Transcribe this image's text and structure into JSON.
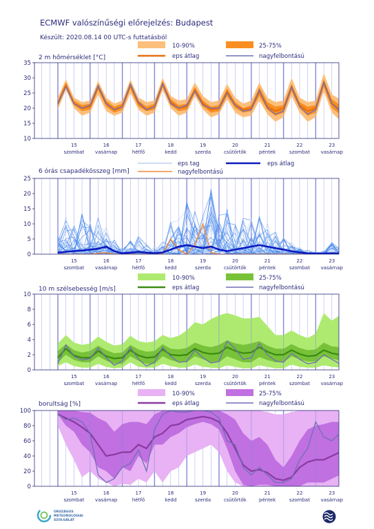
{
  "header": {
    "title": "ECMWF valószínűségi előrejelzés: Budapest",
    "subtitle": "Készült: 2020.08.14 00 UTC-s futtatásból"
  },
  "colors": {
    "axis": "#2b2b7a",
    "grid_v": "#b0b0ee",
    "grid_day": "#8888dd",
    "temp_outer": "#fcbf7c",
    "temp_inner": "#f98f22",
    "temp_mean": "#e86e10",
    "hires": "#6f6fb5",
    "precip_member": "#4488ee",
    "precip_member_light": "#bcd0f0",
    "precip_mean": "#0a1ac0",
    "precip_hires": "#f08a3a",
    "wind_outer": "#aeea70",
    "wind_inner": "#78c23a",
    "wind_mean": "#3a8a12",
    "cloud_outer": "#e8b2f4",
    "cloud_inner": "#c070e0",
    "cloud_mean": "#8a3aa0"
  },
  "icons": {
    "logo_left": "omsz-logo",
    "logo_right": "ecmwf-logo"
  },
  "footer": {
    "logo_text_lines": [
      "ORSZÁGOS",
      "METEOROLÓGIAI",
      "SZOLGÁLAT"
    ]
  },
  "chart_data": [
    {
      "type": "area",
      "title": "2 m hőmérséklet [°C]",
      "legend": {
        "outer": "10-90%",
        "inner": "25-75%",
        "mean": "eps átlag",
        "hires": "nagyfelbontású"
      },
      "ylim": [
        10,
        35
      ],
      "yticks": [
        10,
        15,
        20,
        25,
        30,
        35
      ],
      "x_days": [
        "15",
        "16",
        "17",
        "18",
        "19",
        "20",
        "21",
        "22",
        "23"
      ],
      "x_daynames": [
        "szombat",
        "vasárnap",
        "hétfő",
        "kedd",
        "szerda",
        "csütörtök",
        "péntek",
        "szombat",
        "vasárnap"
      ],
      "x": [
        0,
        0.25,
        0.5,
        0.75,
        1,
        1.25,
        1.5,
        1.75,
        2,
        2.25,
        2.5,
        2.75,
        3,
        3.25,
        3.5,
        3.75,
        4,
        4.25,
        4.5,
        4.75,
        5,
        5.25,
        5.5,
        5.75,
        6,
        6.25,
        6.5,
        6.75,
        7,
        7.25,
        7.5,
        7.75,
        8,
        8.25,
        8.5,
        8.75,
        9.25
      ],
      "p10": [
        19.5,
        26,
        20,
        17.5,
        18.5,
        24.5,
        19,
        17.5,
        18.5,
        25,
        19.5,
        17.5,
        18.5,
        26,
        20,
        17.5,
        18.5,
        24,
        19.5,
        17,
        18,
        23,
        18.5,
        17,
        17.5,
        22.5,
        18,
        15.5,
        17,
        24,
        18.5,
        15.5,
        17,
        25.5,
        18.5,
        16,
        17
      ],
      "p25": [
        20.5,
        27,
        21,
        19,
        19.5,
        26,
        20.5,
        18.5,
        19.5,
        26.5,
        20.5,
        19,
        19.5,
        27,
        21,
        19,
        19.5,
        25,
        20.5,
        18.5,
        19,
        24,
        20,
        18.5,
        19,
        24,
        19.5,
        17.5,
        18.5,
        25.5,
        20,
        17.5,
        18.5,
        27,
        20,
        18,
        19
      ],
      "p75": [
        22.5,
        28.5,
        22.5,
        21,
        21.5,
        28,
        22.5,
        20.5,
        21.5,
        28.5,
        22.5,
        20.5,
        21.5,
        29,
        23,
        21,
        21.5,
        27,
        22.5,
        20.5,
        21,
        26.5,
        22,
        20,
        21,
        27,
        22,
        20.5,
        21,
        28,
        22,
        20.5,
        21,
        29.5,
        23,
        21,
        22
      ],
      "p90": [
        23.5,
        29.5,
        23.5,
        22,
        22.5,
        29,
        23.5,
        21.5,
        22.5,
        29.5,
        23.5,
        22,
        22.5,
        30,
        24,
        22.5,
        23,
        28.5,
        24,
        22,
        22.5,
        28,
        23.5,
        21.5,
        22.5,
        28.5,
        23.5,
        22,
        22.5,
        30,
        23.5,
        22,
        22.5,
        31.5,
        24.5,
        23,
        24
      ],
      "mean": [
        21.5,
        27.5,
        21.5,
        20,
        20.5,
        27,
        21.5,
        19.5,
        20.5,
        27.5,
        21.5,
        19.5,
        20.5,
        28,
        22,
        20,
        20.5,
        26,
        21.5,
        19.5,
        20,
        25.5,
        21,
        19.5,
        20,
        25.5,
        20.5,
        19,
        20,
        27,
        21,
        19,
        20,
        28.5,
        21.5,
        19.5,
        20.5
      ],
      "hires": [
        21.5,
        27,
        21.5,
        20,
        21,
        27.5,
        21.5,
        19.5,
        20.5,
        28,
        22,
        19.5,
        20.5,
        28,
        21.5,
        20,
        21,
        25.5,
        21,
        20,
        20,
        25,
        21,
        19,
        19.5,
        26,
        20,
        18,
        19,
        27,
        20.5,
        18,
        19.5,
        28.5,
        21.5,
        19,
        21
      ]
    },
    {
      "type": "line",
      "title": "6 órás csapadékösszeg [mm]",
      "legend": {
        "members": "eps tag",
        "mean": "eps átlag",
        "hires": "nagyfelbontású"
      },
      "ylim": [
        0,
        25
      ],
      "yticks": [
        0,
        5,
        10,
        15,
        20,
        25
      ],
      "x_days": [
        "15",
        "16",
        "17",
        "18",
        "19",
        "20",
        "21",
        "22",
        "23"
      ],
      "x_daynames": [
        "szombat",
        "vasárnap",
        "hétfő",
        "kedd",
        "szerda",
        "csütörtök",
        "péntek",
        "szombat",
        "vasárnap"
      ],
      "x": [
        0,
        0.25,
        0.5,
        0.75,
        1,
        1.25,
        1.5,
        1.75,
        2,
        2.25,
        2.5,
        2.75,
        3,
        3.25,
        3.5,
        3.75,
        4,
        4.25,
        4.5,
        4.75,
        5,
        5.25,
        5.5,
        5.75,
        6,
        6.25,
        6.5,
        6.75,
        7,
        7.25,
        7.5,
        7.75,
        8,
        8.25,
        8.5,
        8.75,
        9.25
      ],
      "mean": [
        0.5,
        0.8,
        1.0,
        1.2,
        1.5,
        1.8,
        2.5,
        1.0,
        0.3,
        0.5,
        0.8,
        0.5,
        0.3,
        0.6,
        1.5,
        2.5,
        3.0,
        2.5,
        2.0,
        2.5,
        1.5,
        1.0,
        1.5,
        2.0,
        2.5,
        3.0,
        2.5,
        2.0,
        1.5,
        1.0,
        0.6,
        0.3,
        0.2,
        0.2,
        0.3,
        0.2,
        0.2
      ],
      "hires": [
        0.0,
        0.0,
        0.0,
        0.0,
        0.0,
        0.3,
        0.5,
        0.0,
        0.0,
        0.0,
        0.0,
        0.0,
        0.0,
        0.0,
        5.0,
        1.5,
        0.0,
        3.0,
        10.0,
        0.5,
        0.0,
        0.0,
        0.0,
        0.0,
        0.0,
        0.0,
        0.0,
        0.0,
        0.0,
        0.0,
        0.0,
        0.0,
        0.0,
        0.0,
        0.0,
        0.0,
        0.0
      ],
      "members_envelope": [
        6.0,
        13.0,
        11.0,
        16.0,
        14.0,
        12.5,
        11.0,
        5.0,
        2.5,
        5.0,
        6.0,
        3.5,
        2.5,
        4.0,
        12.0,
        11.5,
        18.0,
        15.0,
        13.0,
        22.5,
        13.0,
        15.0,
        14.0,
        12.0,
        12.5,
        13.5,
        11.0,
        8.0,
        6.0,
        4.0,
        2.5,
        1.5,
        1.0,
        1.0,
        4.5,
        3.0,
        5.0
      ]
    },
    {
      "type": "area",
      "title": "10 m szélsebesség [m/s]",
      "legend": {
        "outer": "10-90%",
        "inner": "25-75%",
        "mean": "eps átlag",
        "hires": "nagyfelbontású"
      },
      "ylim": [
        0,
        10
      ],
      "yticks": [
        0,
        2,
        4,
        6,
        8,
        10
      ],
      "x_days": [
        "15",
        "16",
        "17",
        "18",
        "19",
        "20",
        "21",
        "22",
        "23"
      ],
      "x_daynames": [
        "szombat",
        "vasárnap",
        "hétfő",
        "kedd",
        "szerda",
        "csütörtök",
        "péntek",
        "szombat",
        "vasárnap"
      ],
      "x": [
        0,
        0.25,
        0.5,
        0.75,
        1,
        1.25,
        1.5,
        1.75,
        2,
        2.25,
        2.5,
        2.75,
        3,
        3.25,
        3.5,
        3.75,
        4,
        4.25,
        4.5,
        4.75,
        5,
        5.25,
        5.5,
        5.75,
        6,
        6.25,
        6.5,
        6.75,
        7,
        7.25,
        7.5,
        7.75,
        8,
        8.25,
        8.5,
        8.75,
        9.25
      ],
      "p10": [
        0.5,
        1.0,
        0.5,
        0.3,
        0.3,
        0.8,
        0.4,
        0.2,
        0.3,
        1.0,
        0.4,
        0.3,
        0.3,
        0.8,
        0.5,
        0.3,
        0.3,
        0.7,
        0.4,
        0.3,
        0.2,
        0.6,
        0.4,
        0.2,
        0.2,
        0.6,
        0.4,
        0.2,
        0.2,
        0.7,
        0.4,
        0.3,
        0.3,
        0.6,
        0.4,
        0.3,
        0.3
      ],
      "p25": [
        1.0,
        2.0,
        1.3,
        1.0,
        1.0,
        1.8,
        1.2,
        0.8,
        0.8,
        1.8,
        1.2,
        0.8,
        0.8,
        1.8,
        1.3,
        1.0,
        1.0,
        1.8,
        1.4,
        1.0,
        1.0,
        1.8,
        1.4,
        1.0,
        1.0,
        1.7,
        1.3,
        1.0,
        1.0,
        1.8,
        1.4,
        1.1,
        1.1,
        1.8,
        1.5,
        1.2,
        1.3
      ],
      "p75": [
        2.5,
        3.4,
        2.6,
        2.3,
        2.5,
        3.2,
        2.6,
        2.2,
        2.3,
        3.3,
        2.7,
        2.4,
        2.5,
        3.4,
        2.8,
        2.7,
        2.9,
        3.6,
        3.2,
        3.0,
        3.3,
        3.9,
        3.5,
        3.3,
        3.5,
        3.8,
        3.2,
        2.8,
        2.8,
        3.4,
        2.9,
        2.6,
        2.7,
        3.6,
        3.1,
        3.0,
        3.5
      ],
      "p90": [
        3.5,
        4.6,
        3.6,
        3.3,
        3.5,
        4.4,
        3.7,
        3.2,
        3.4,
        4.5,
        3.8,
        3.6,
        3.8,
        4.6,
        4.2,
        4.5,
        5.2,
        6.3,
        6.0,
        6.7,
        7.2,
        7.5,
        7.2,
        6.8,
        6.8,
        7.0,
        5.8,
        4.6,
        4.6,
        5.2,
        4.6,
        4.2,
        4.8,
        7.5,
        6.5,
        7.2,
        7.5
      ],
      "mean": [
        1.6,
        2.8,
        1.9,
        1.6,
        1.6,
        2.5,
        1.8,
        1.5,
        1.6,
        2.6,
        1.9,
        1.6,
        1.7,
        2.7,
        2.0,
        1.9,
        2.0,
        2.8,
        2.3,
        2.1,
        2.2,
        3.0,
        2.5,
        2.2,
        2.3,
        3.0,
        2.4,
        2.0,
        2.0,
        2.6,
        2.1,
        1.8,
        1.9,
        2.6,
        2.2,
        2.0,
        2.4
      ],
      "hires": [
        0.8,
        3.3,
        1.8,
        1.3,
        1.5,
        2.9,
        1.6,
        0.6,
        1.2,
        3.0,
        1.4,
        0.5,
        1.0,
        3.0,
        1.8,
        1.0,
        1.1,
        2.6,
        1.6,
        0.9,
        1.1,
        3.8,
        2.8,
        1.4,
        1.6,
        3.5,
        2.0,
        1.2,
        1.0,
        2.2,
        1.4,
        0.8,
        1.0,
        2.0,
        1.4,
        0.8,
        3.8
      ]
    },
    {
      "type": "area",
      "title": "borultság [%]",
      "legend": {
        "outer": "10-90%",
        "inner": "25-75%",
        "mean": "eps átlag",
        "hires": "nagyfelbontású"
      },
      "ylim": [
        0,
        100
      ],
      "yticks": [
        0,
        20,
        40,
        60,
        80,
        100
      ],
      "x_days": [
        "15",
        "16",
        "17",
        "18",
        "19",
        "20",
        "21",
        "22",
        "23"
      ],
      "x_daynames": [
        "szombat",
        "vasárnap",
        "hétfő",
        "kedd",
        "szerda",
        "csütörtök",
        "péntek",
        "szombat",
        "vasárnap"
      ],
      "x": [
        0,
        0.25,
        0.5,
        0.75,
        1,
        1.25,
        1.5,
        1.75,
        2,
        2.25,
        2.5,
        2.75,
        3,
        3.25,
        3.5,
        3.75,
        4,
        4.25,
        4.5,
        4.75,
        5,
        5.25,
        5.5,
        5.75,
        6,
        6.25,
        6.5,
        6.75,
        7,
        7.25,
        7.5,
        7.75,
        8,
        8.25,
        8.5,
        8.75,
        9.25
      ],
      "p10": [
        80,
        55,
        35,
        12,
        20,
        10,
        5,
        0,
        3,
        2,
        10,
        5,
        20,
        5,
        20,
        25,
        40,
        45,
        50,
        55,
        45,
        20,
        5,
        0,
        0,
        0,
        0,
        0,
        0,
        0,
        0,
        0,
        0,
        0,
        0,
        0,
        0
      ],
      "p25": [
        95,
        80,
        72,
        55,
        45,
        25,
        20,
        10,
        25,
        20,
        40,
        30,
        55,
        55,
        65,
        70,
        78,
        82,
        85,
        82,
        75,
        50,
        20,
        2,
        0,
        2,
        2,
        0,
        0,
        0,
        0,
        5,
        5,
        5,
        10,
        15,
        25
      ],
      "p75": [
        100,
        100,
        100,
        98,
        97,
        90,
        85,
        72,
        82,
        85,
        85,
        82,
        95,
        100,
        100,
        100,
        100,
        100,
        100,
        100,
        100,
        95,
        88,
        70,
        60,
        65,
        55,
        35,
        25,
        40,
        60,
        75,
        80,
        82,
        85,
        85,
        88
      ],
      "p90": [
        100,
        100,
        100,
        100,
        100,
        100,
        100,
        100,
        100,
        100,
        100,
        100,
        100,
        100,
        100,
        100,
        100,
        100,
        100,
        100,
        100,
        100,
        100,
        100,
        100,
        100,
        98,
        95,
        95,
        98,
        100,
        100,
        100,
        100,
        100,
        100,
        100
      ],
      "mean": [
        95,
        90,
        85,
        78,
        70,
        55,
        40,
        42,
        45,
        45,
        55,
        50,
        65,
        70,
        80,
        82,
        88,
        90,
        92,
        90,
        85,
        70,
        50,
        28,
        20,
        22,
        18,
        10,
        8,
        12,
        25,
        32,
        35,
        35,
        40,
        45,
        48
      ],
      "hires": [
        95,
        88,
        90,
        85,
        70,
        15,
        5,
        10,
        25,
        30,
        48,
        20,
        75,
        95,
        100,
        98,
        98,
        100,
        100,
        98,
        90,
        60,
        55,
        25,
        15,
        25,
        15,
        5,
        5,
        10,
        35,
        50,
        85,
        65,
        60,
        70,
        95
      ]
    }
  ]
}
